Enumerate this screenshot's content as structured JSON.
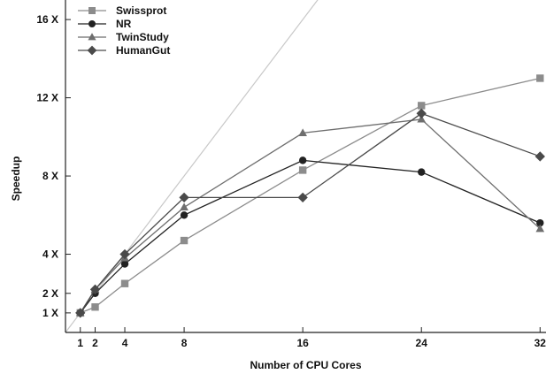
{
  "chart_data": {
    "type": "line",
    "xlabel": "Number of CPU Cores",
    "ylabel": "Speedup",
    "xlim": [
      0,
      32.4
    ],
    "ylim": [
      0,
      17
    ],
    "x_ticks": [
      {
        "value": 1,
        "label": "1"
      },
      {
        "value": 2,
        "label": "2"
      },
      {
        "value": 4,
        "label": "4"
      },
      {
        "value": 8,
        "label": "8"
      },
      {
        "value": 16,
        "label": "16"
      },
      {
        "value": 24,
        "label": "24"
      },
      {
        "value": 32,
        "label": "32"
      }
    ],
    "y_ticks": [
      {
        "value": 1,
        "label": "1 X"
      },
      {
        "value": 2,
        "label": "2 X"
      },
      {
        "value": 4,
        "label": "4 X"
      },
      {
        "value": 8,
        "label": "8 X"
      },
      {
        "value": 12,
        "label": "12 X"
      },
      {
        "value": 16,
        "label": "16 X"
      }
    ],
    "x": [
      1,
      2,
      4,
      8,
      16,
      24,
      32
    ],
    "reference_line": {
      "x": [
        0,
        32
      ],
      "y": [
        0,
        32
      ],
      "color": "#c8c8c8"
    },
    "legend_position": "top-left",
    "grid": false,
    "series": [
      {
        "name": "Swissprot",
        "marker": "square",
        "color": "#8c8c8c",
        "values": [
          1.0,
          1.3,
          2.5,
          4.7,
          8.3,
          11.6,
          13.0
        ]
      },
      {
        "name": "NR",
        "marker": "circle",
        "color": "#222222",
        "values": [
          1.0,
          2.0,
          3.5,
          6.0,
          8.8,
          8.2,
          5.6
        ]
      },
      {
        "name": "TwinStudy",
        "marker": "triangle",
        "color": "#6e6e6e",
        "values": [
          1.0,
          2.2,
          3.8,
          6.4,
          10.2,
          10.9,
          5.3
        ]
      },
      {
        "name": "HumanGut",
        "marker": "diamond",
        "color": "#4a4a4a",
        "values": [
          1.0,
          2.2,
          4.0,
          6.9,
          6.9,
          11.2,
          9.0
        ]
      }
    ]
  }
}
